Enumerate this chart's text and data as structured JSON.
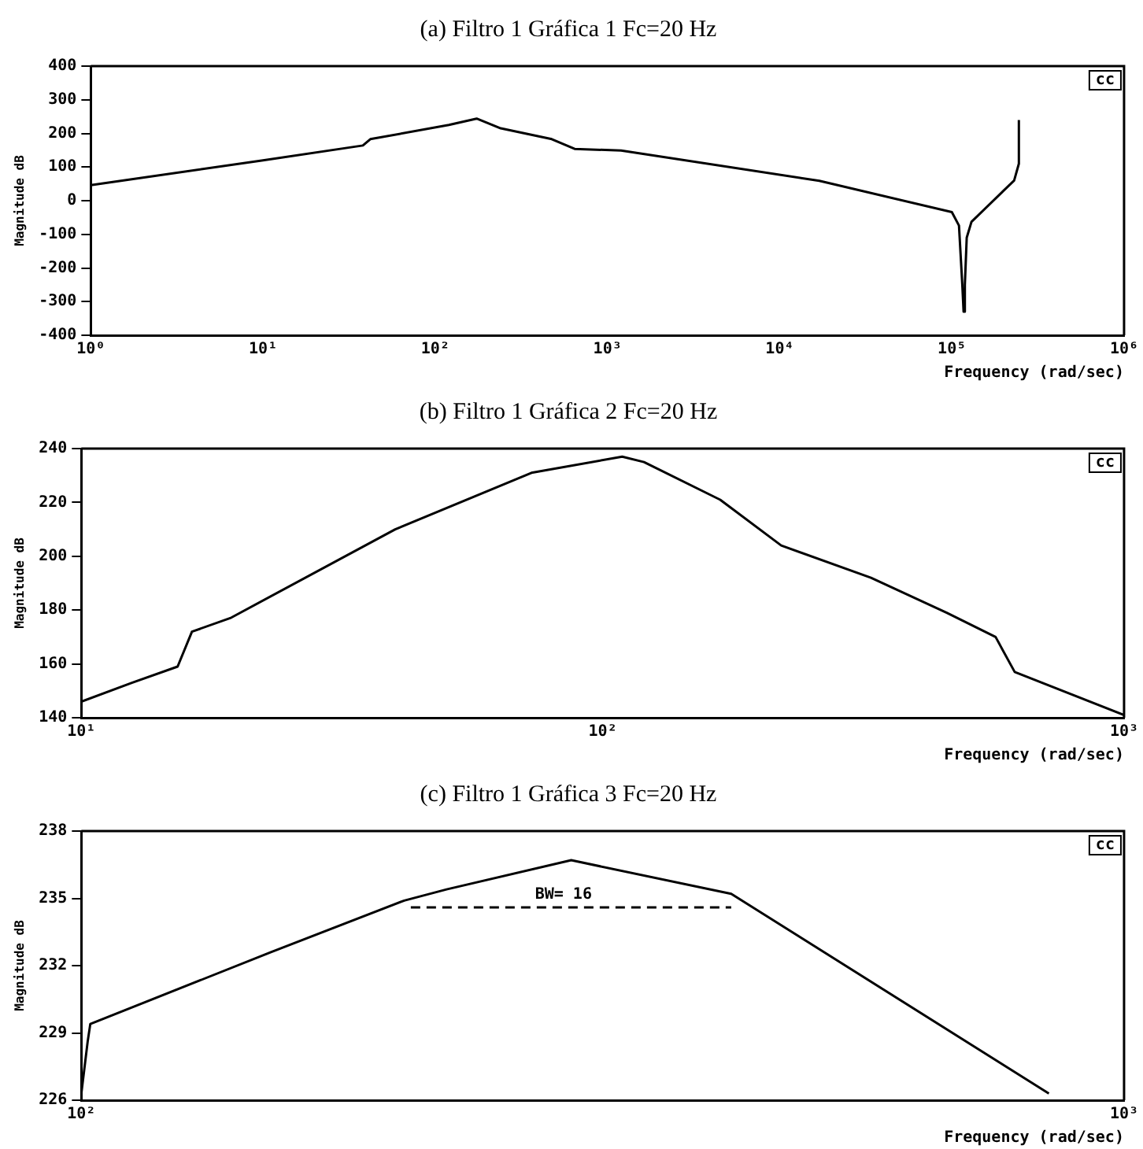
{
  "chart_data": [
    {
      "type": "line",
      "title": "(a) Filtro 1 Gráfica 1 Fc=20 Hz",
      "xlabel": "Frequency (rad/sec)",
      "ylabel": "Magnitude dB",
      "log": "x",
      "grid": false,
      "legend": false,
      "marker": "none",
      "annotations": [
        "cc"
      ],
      "xlim": [
        1,
        1000000
      ],
      "xticks": [
        {
          "value": 1,
          "label": "10⁰"
        },
        {
          "value": 10,
          "label": "10¹"
        },
        {
          "value": 100,
          "label": "10²"
        },
        {
          "value": 1000,
          "label": "10³"
        },
        {
          "value": 10000,
          "label": "10⁴"
        },
        {
          "value": 100000,
          "label": "10⁵"
        },
        {
          "value": 1000000,
          "label": "10⁶"
        }
      ],
      "ylim": [
        -400,
        400
      ],
      "yticks": [
        -400,
        -300,
        -200,
        -100,
        0,
        100,
        200,
        300,
        400
      ],
      "series": [
        {
          "color": "#000000",
          "line_style": "solid",
          "x": [
            1,
            10,
            38,
            42,
            120,
            174,
            240,
            475,
            645,
            1200,
            17000,
            100000,
            110000,
            115000,
            117000,
            119000,
            122000,
            130000,
            200000,
            230000,
            245000,
            245000
          ],
          "values": [
            46,
            120,
            164,
            183,
            225,
            244,
            215,
            183,
            154,
            149,
            59,
            -34,
            -74,
            -250,
            -330,
            -250,
            -110,
            -63,
            30,
            60,
            110,
            240
          ]
        }
      ]
    },
    {
      "type": "line",
      "title": "(b) Filtro 1 Gráfica 2 Fc=20 Hz",
      "xlabel": "Frequency (rad/sec)",
      "ylabel": "Magnitude dB",
      "log": "x",
      "grid": false,
      "legend": false,
      "marker": "none",
      "annotations": [
        "cc"
      ],
      "xlim": [
        10,
        1000
      ],
      "xticks": [
        {
          "value": 10,
          "label": "10¹"
        },
        {
          "value": 100,
          "label": "10²"
        },
        {
          "value": 1000,
          "label": "10³"
        }
      ],
      "ylim": [
        140,
        240
      ],
      "yticks": [
        140,
        160,
        180,
        200,
        220,
        240
      ],
      "series": [
        {
          "color": "#000000",
          "line_style": "solid",
          "x": [
            10,
            12.5,
            15.3,
            16.3,
            19.3,
            40,
            73,
            109,
            120,
            168,
            220,
            327,
            457,
            567,
            617,
            1000
          ],
          "values": [
            146,
            153,
            159,
            172,
            177,
            210,
            231,
            237,
            235,
            221,
            204,
            192,
            179,
            170,
            157,
            141
          ]
        }
      ]
    },
    {
      "type": "line",
      "title": "(c) Filtro 1 Gráfica 3 Fc=20 Hz",
      "xlabel": "Frequency (rad/sec)",
      "ylabel": "Magnitude dB",
      "log": "x",
      "grid": false,
      "legend": false,
      "marker": "none",
      "annotations": [
        "cc",
        {
          "text": "BW= 16",
          "x": 290,
          "y": 234.6
        }
      ],
      "xlim": [
        100,
        1000
      ],
      "xticks": [
        {
          "value": 100,
          "label": "10²"
        },
        {
          "value": 1000,
          "label": "10³"
        }
      ],
      "ylim": [
        226,
        238
      ],
      "yticks": [
        226,
        229,
        232,
        235,
        238
      ],
      "series": [
        {
          "color": "#000000",
          "line_style": "solid",
          "x": [
            100,
            101.4,
            102,
            152,
            204,
            224,
            295,
            420,
            847
          ],
          "values": [
            226.3,
            228.6,
            229.4,
            232.6,
            234.9,
            235.4,
            236.7,
            235.2,
            226.3
          ]
        },
        {
          "color": "#000000",
          "line_style": "dashed",
          "x": [
            207,
            290,
            420
          ],
          "values": [
            234.6,
            234.6,
            234.6
          ]
        }
      ]
    }
  ]
}
